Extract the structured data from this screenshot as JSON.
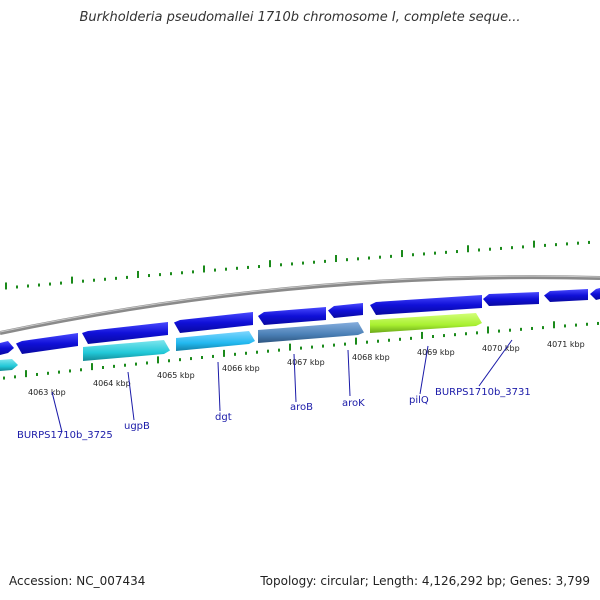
{
  "title": "Burkholderia pseudomallei 1710b chromosome I, complete seque...",
  "footer": {
    "accession": "Accession: NC_007434",
    "topology": "Topology: circular; Length: 4,126,292 bp; Genes: 3,799"
  },
  "scale_labels": [
    "4063 kbp",
    "4064 kbp",
    "4065 kbp",
    "4066 kbp",
    "4067 kbp",
    "4068 kbp",
    "4069 kbp",
    "4070 kbp",
    "4071 kbp"
  ],
  "gene_labels": [
    "BURPS1710b_3725",
    "ugpB",
    "dgt",
    "aroB",
    "aroK",
    "pilQ",
    "BURPS1710b_3731"
  ],
  "colors": {
    "backbone": "#8a8a8a",
    "gene_dark_blue": "#1010d8",
    "gene_cyan": "#22c8d8",
    "gene_light_blue": "#22b8f0",
    "gene_steel": "#4a7fb5",
    "gene_lime": "#a8f030",
    "tick": "#1a8a1a",
    "label": "#1a1aa8"
  }
}
